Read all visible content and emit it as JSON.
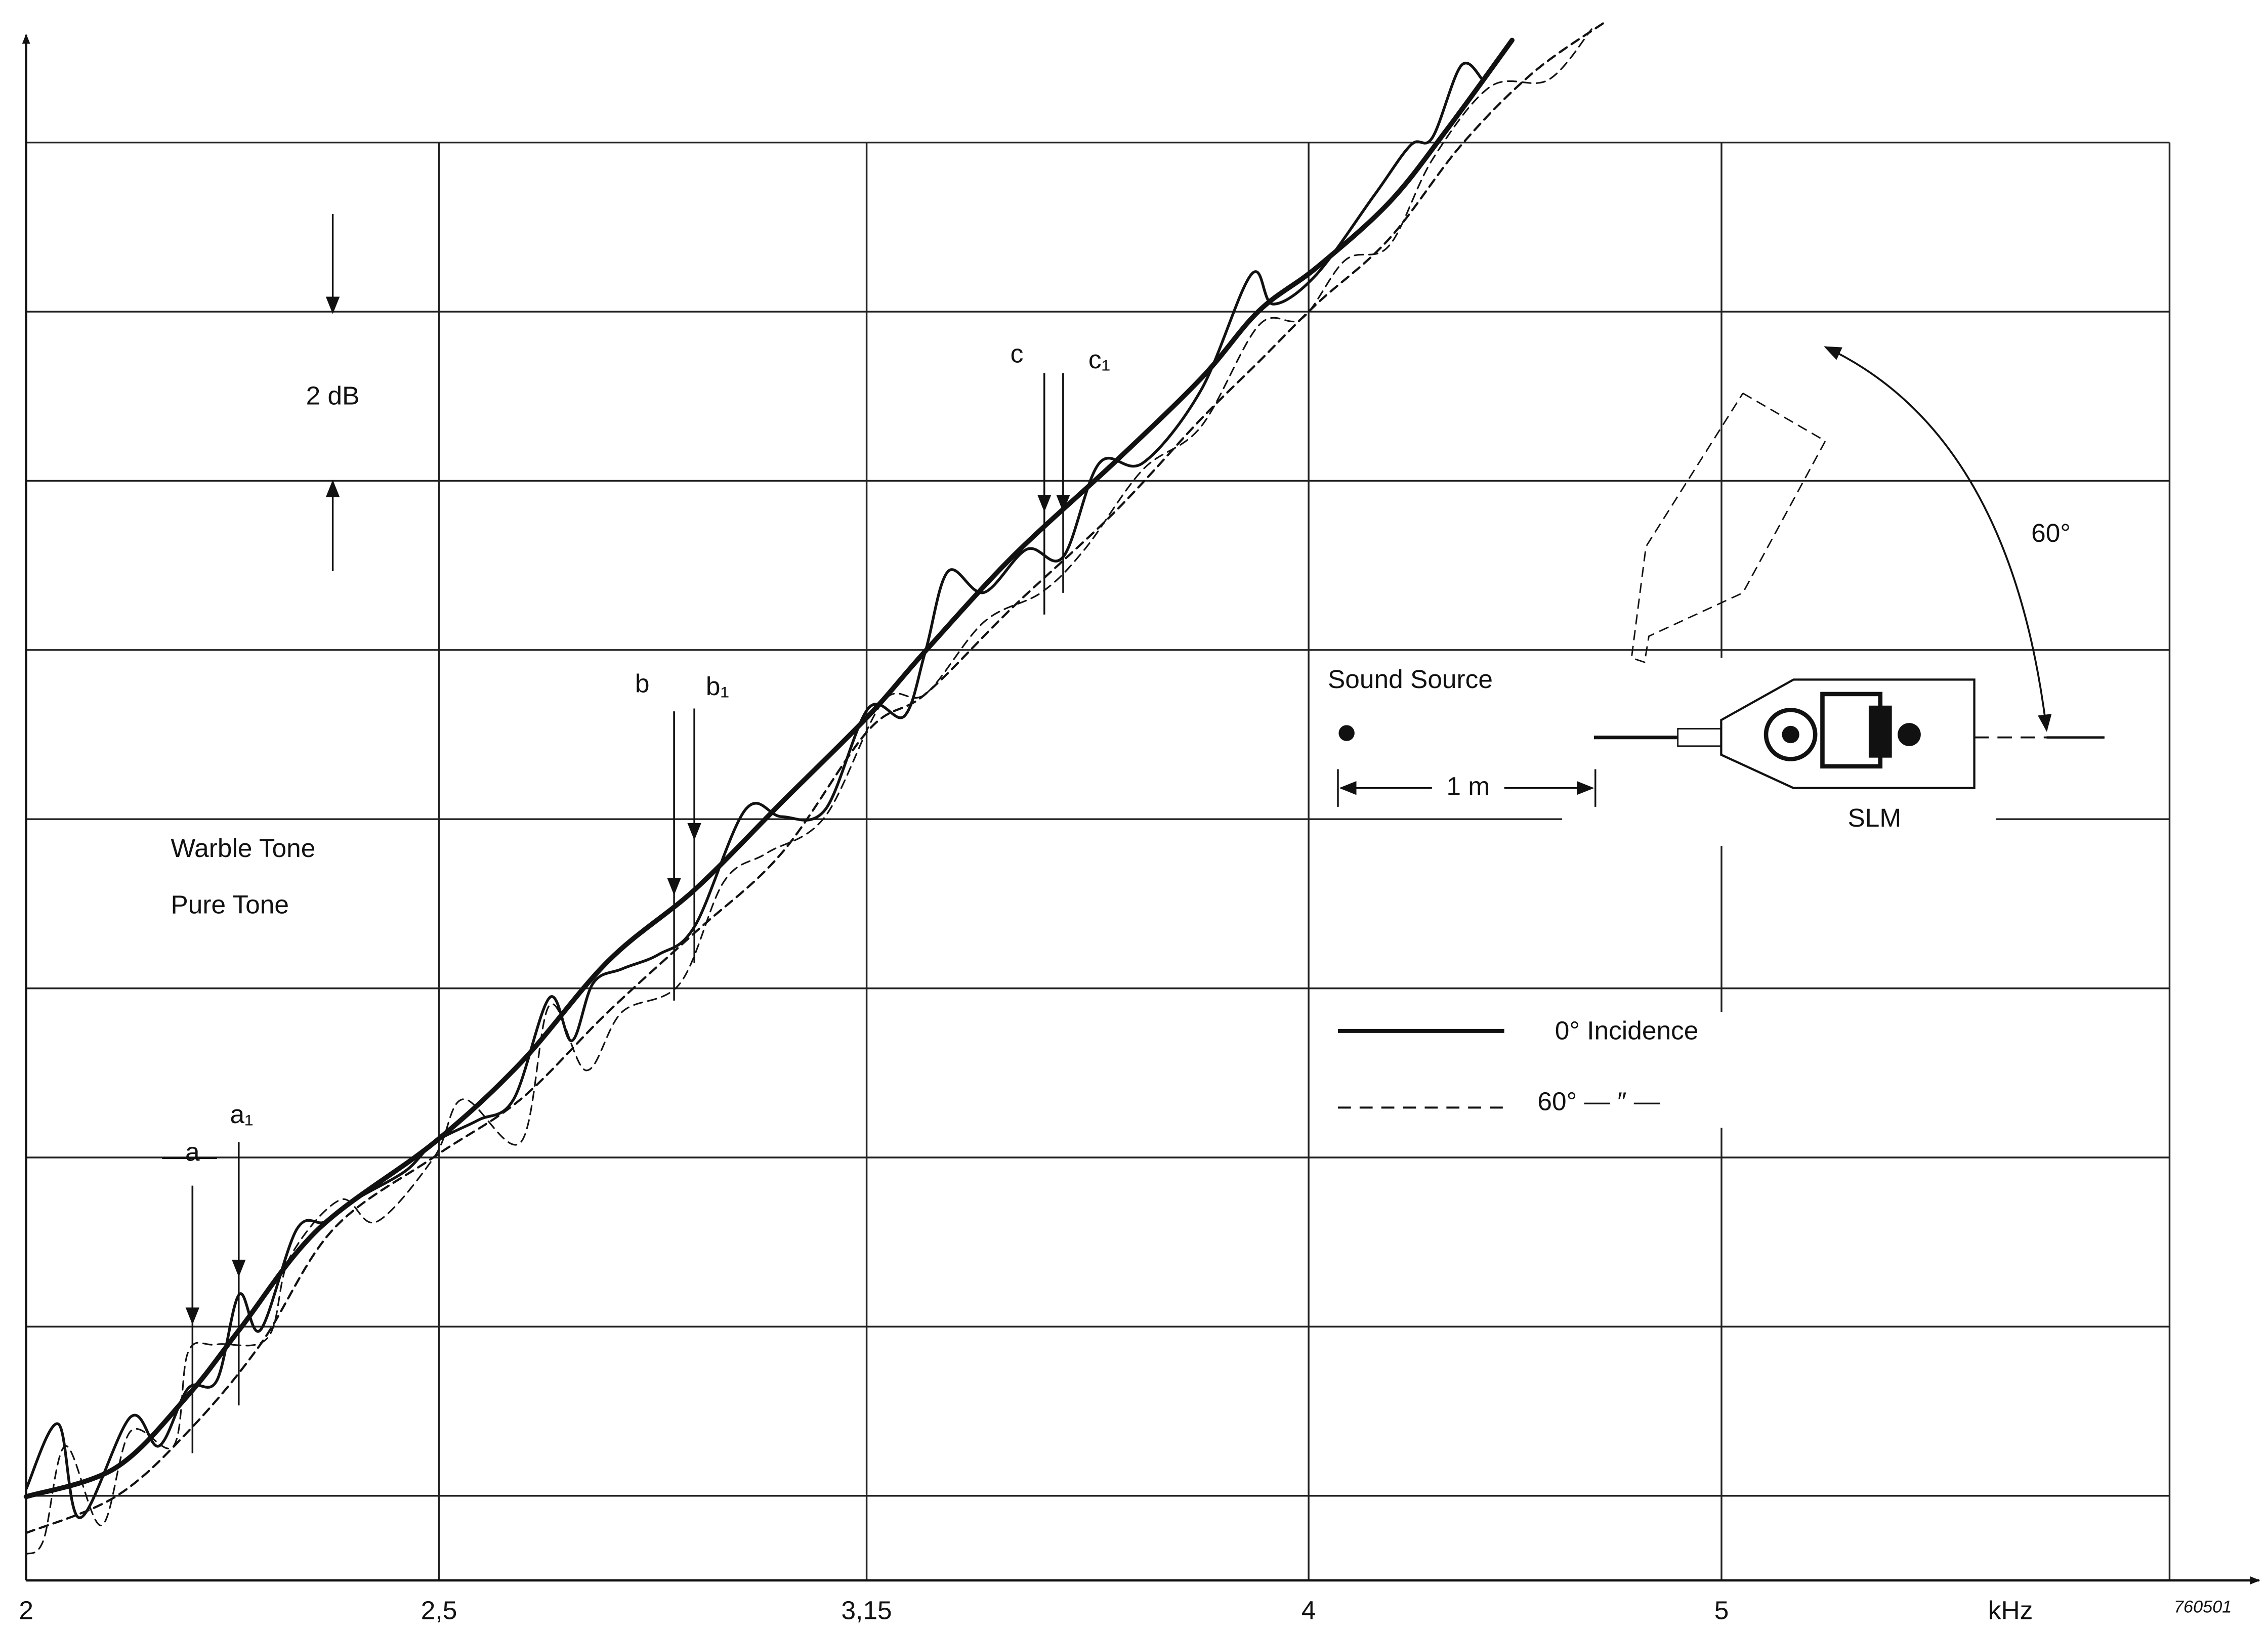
{
  "chart_data": {
    "type": "line",
    "x_label": "kHz",
    "code": "760501",
    "log_x": true,
    "xlim": [
      2,
      6.37
    ],
    "xticks": [
      2,
      {
        "value": 2.5,
        "label": "2,5"
      },
      {
        "value": 3.15,
        "label": "3,15"
      },
      4,
      5
    ],
    "ylim": [
      0,
      18.3
    ],
    "ygrid": [
      1,
      3,
      5,
      7,
      9,
      11,
      13,
      15,
      17
    ],
    "scale_label": "2 dB",
    "warble_label": "Warble Tone",
    "pure_label": "Pure Tone",
    "series": [
      {
        "name": "0° Incidence",
        "color": "#111111",
        "dashed": false,
        "x": [
          2.0,
          2.099,
          2.183,
          2.244,
          2.342,
          2.494,
          2.613,
          2.739,
          2.871,
          3.009,
          3.153,
          3.252,
          3.408,
          3.6,
          3.774,
          3.894,
          4.017,
          4.178,
          4.31,
          4.465
        ],
        "values": [
          0.99,
          1.33,
          2.19,
          2.96,
          4.15,
          5.18,
          6.12,
          7.32,
          8.17,
          9.2,
          10.22,
          10.99,
          12.1,
          13.21,
          14.21,
          15.01,
          15.52,
          16.29,
          17.15,
          18.21
        ],
        "pure_tone": {
          "x": [
            2.0,
            2.035,
            2.059,
            2.116,
            2.149,
            2.183,
            2.217,
            2.244,
            2.27,
            2.315,
            2.351,
            2.389,
            2.455,
            2.494,
            2.553,
            2.603,
            2.654,
            2.686,
            2.717,
            2.76,
            2.815,
            2.871,
            2.95,
            3.009,
            3.08,
            3.153,
            3.215,
            3.252,
            3.292,
            3.356,
            3.435,
            3.503,
            3.572,
            3.657,
            3.774,
            3.878,
            3.924,
            4.017,
            4.145,
            4.227,
            4.277,
            4.344,
            4.395
          ],
          "values": [
            1.08,
            1.85,
            0.74,
            1.93,
            1.59,
            2.27,
            2.36,
            3.38,
            2.96,
            4.15,
            4.24,
            4.5,
            4.84,
            5.18,
            5.44,
            5.69,
            6.89,
            6.38,
            7.06,
            7.23,
            7.4,
            7.74,
            9.11,
            9.03,
            9.11,
            10.31,
            10.22,
            10.99,
            11.93,
            11.68,
            12.19,
            12.1,
            13.21,
            13.21,
            14.07,
            15.44,
            15.09,
            15.44,
            16.38,
            16.97,
            17.06,
            17.91,
            17.74
          ]
        }
      },
      {
        "name": "60° — ″ —",
        "color": "#111111",
        "dashed": true,
        "x": [
          2.0,
          2.099,
          2.183,
          2.27,
          2.361,
          2.494,
          2.613,
          2.739,
          2.871,
          3.009,
          3.153,
          3.252,
          3.408,
          3.6,
          3.774,
          3.894,
          4.017,
          4.178,
          4.344,
          4.517,
          4.697
        ],
        "values": [
          0.56,
          0.99,
          1.76,
          2.79,
          4.15,
          5.01,
          5.69,
          6.72,
          7.66,
          8.6,
          10.05,
          10.48,
          11.5,
          12.62,
          13.73,
          14.41,
          15.09,
          15.86,
          16.97,
          17.83,
          18.43
        ],
        "pure_tone": {
          "x": [
            2.0,
            2.019,
            2.043,
            2.083,
            2.116,
            2.166,
            2.183,
            2.217,
            2.279,
            2.306,
            2.37,
            2.417,
            2.494,
            2.533,
            2.613,
            2.654,
            2.707,
            2.76,
            2.848,
            2.916,
            2.985,
            3.08,
            3.178,
            3.252,
            3.356,
            3.462,
            3.544,
            3.657,
            3.774,
            3.894,
            3.986,
            4.08,
            4.178,
            4.277,
            4.413,
            4.553,
            4.661
          ],
          "values": [
            0.31,
            0.48,
            1.59,
            0.65,
            1.76,
            1.59,
            2.7,
            2.79,
            2.87,
            3.81,
            4.5,
            4.24,
            5.01,
            5.69,
            5.18,
            6.8,
            6.03,
            6.72,
            7.06,
            8.26,
            8.6,
            9.03,
            10.39,
            10.48,
            11.33,
            11.68,
            12.19,
            13.13,
            13.64,
            14.84,
            14.92,
            15.61,
            15.78,
            16.8,
            17.66,
            17.74,
            18.34
          ]
        }
      }
    ],
    "markers": [
      "a",
      "a₁",
      "b",
      "b₁",
      "c",
      "c₁"
    ],
    "setup": {
      "source": "Sound Source",
      "distance": "1 m",
      "meter": "SLM",
      "angle": "60°"
    }
  }
}
